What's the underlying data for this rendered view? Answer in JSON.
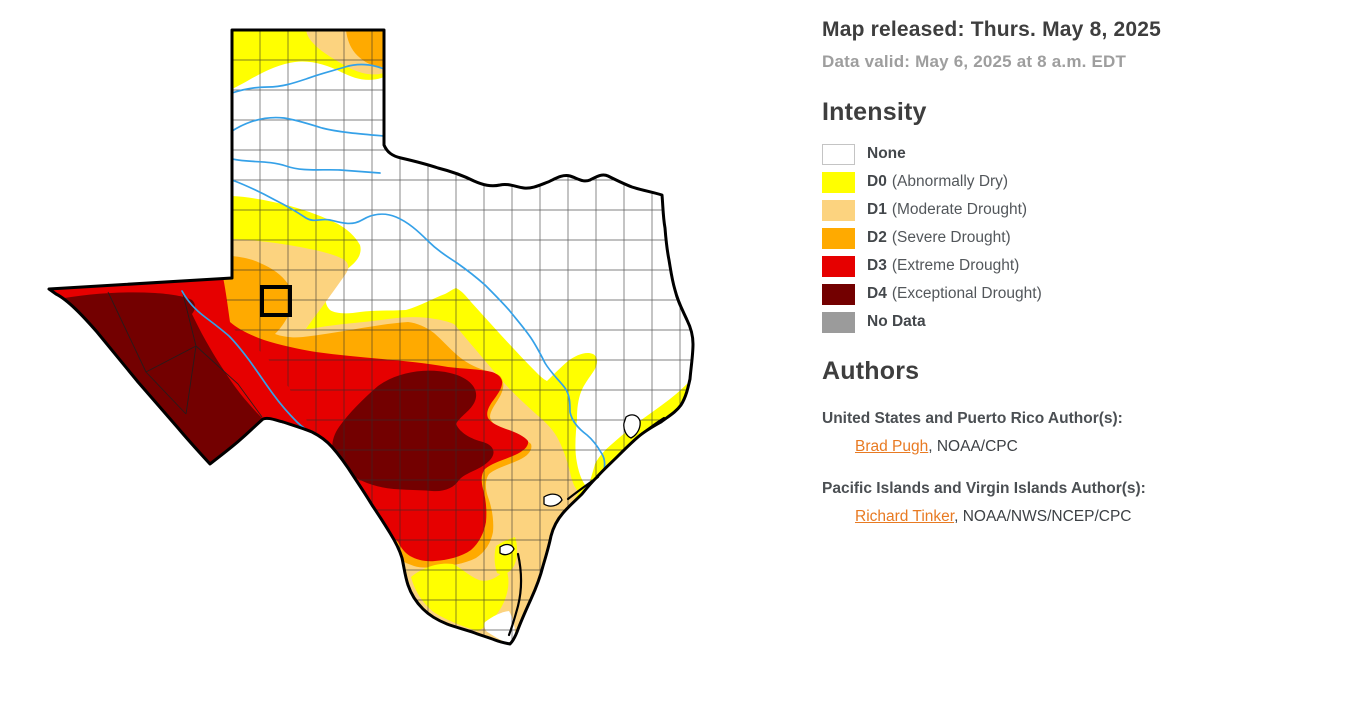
{
  "header": {
    "released": "Map released: Thurs. May 8, 2025",
    "valid": "Data valid: May 6, 2025 at 8 a.m. EDT"
  },
  "legend": {
    "title": "Intensity",
    "items": [
      {
        "code": "None",
        "desc": "",
        "color": "#FFFFFF",
        "bordered": true
      },
      {
        "code": "D0",
        "desc": "(Abnormally Dry)",
        "color": "#FFFF00"
      },
      {
        "code": "D1",
        "desc": "(Moderate Drought)",
        "color": "#FCD37F"
      },
      {
        "code": "D2",
        "desc": "(Severe Drought)",
        "color": "#FFAA00"
      },
      {
        "code": "D3",
        "desc": "(Extreme Drought)",
        "color": "#E60000"
      },
      {
        "code": "D4",
        "desc": "(Exceptional Drought)",
        "color": "#730000"
      },
      {
        "code": "No Data",
        "desc": "",
        "color": "#9B9B9B"
      }
    ]
  },
  "authors": {
    "title": "Authors",
    "groups": [
      {
        "label": "United States and Puerto Rico Author(s):",
        "name": "Brad Pugh",
        "affiliation": ", NOAA/CPC"
      },
      {
        "label": "Pacific Islands and Virgin Islands Author(s):",
        "name": "Richard Tinker",
        "affiliation": ", NOAA/NWS/NCEP/CPC"
      }
    ]
  },
  "map": {
    "region": "Texas",
    "highlight": "selected-county",
    "river_color": "#35A1E8",
    "outline_color": "#000000",
    "county_line_color": "#2E2E2E",
    "background_color": "#FFFFFF"
  },
  "theme": {
    "link_color": "#E87A22",
    "heading_color": "#3E3E3E",
    "muted_color": "#9E9E9E"
  }
}
